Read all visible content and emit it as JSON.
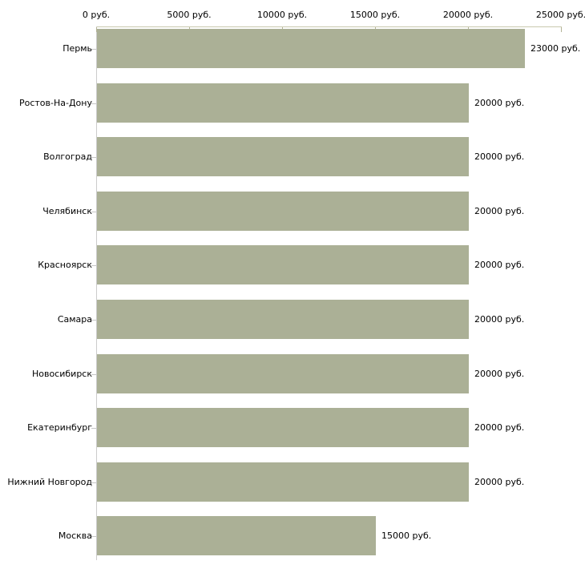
{
  "chart_data": {
    "type": "bar",
    "orientation": "horizontal",
    "title": "",
    "categories": [
      "Пермь",
      "Ростов-На-Дону",
      "Волгоград",
      "Челябинск",
      "Красноярск",
      "Самара",
      "Новосибирск",
      "Екатеринбург",
      "Нижний Новгород",
      "Москва"
    ],
    "values": [
      23000,
      20000,
      20000,
      20000,
      20000,
      20000,
      20000,
      20000,
      20000,
      15000
    ],
    "value_labels": [
      "23000 руб.",
      "20000 руб.",
      "20000 руб.",
      "20000 руб.",
      "20000 руб.",
      "20000 руб.",
      "20000 руб.",
      "20000 руб.",
      "20000 руб.",
      "15000 руб."
    ],
    "x_ticks": [
      0,
      5000,
      10000,
      15000,
      20000,
      25000
    ],
    "x_tick_labels": [
      "0 руб.",
      "5000 руб.",
      "10000 руб.",
      "15000 руб.",
      "20000 руб.",
      "25000 руб."
    ],
    "xlim": [
      0,
      25000
    ],
    "unit": "руб.",
    "xlabel": "",
    "ylabel": "",
    "grid": false,
    "legend": null,
    "bar_color": "#abb096",
    "axis_line_color": "#c9c9ae",
    "left_axis_color": "#cccccc",
    "tick_color": "#b3b396",
    "text_color": "#000000",
    "background_color": "#ffffff"
  }
}
